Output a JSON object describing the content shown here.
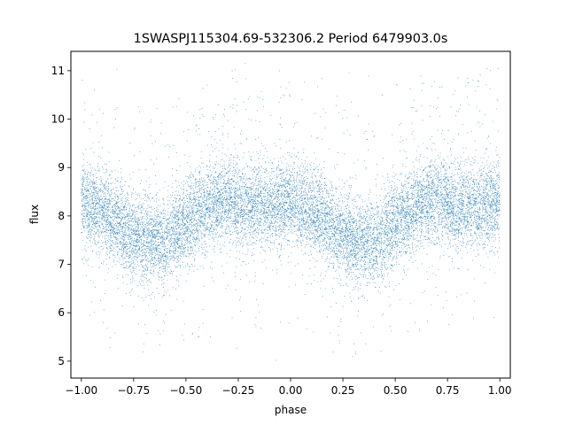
{
  "chart_data": {
    "type": "scatter",
    "title": "1SWASPJ115304.69-532306.2 Period 6479903.0s",
    "xlabel": "phase",
    "ylabel": "flux",
    "xlim": [
      -1.05,
      1.05
    ],
    "ylim": [
      4.65,
      11.4
    ],
    "xticks": [
      -1.0,
      -0.75,
      -0.5,
      -0.25,
      0.0,
      0.25,
      0.5,
      0.75,
      1.0
    ],
    "xtick_labels": [
      "−1.00",
      "−0.75",
      "−0.50",
      "−0.25",
      "0.00",
      "0.25",
      "0.50",
      "0.75",
      "1.00"
    ],
    "yticks": [
      5,
      6,
      7,
      8,
      9,
      10,
      11
    ],
    "ytick_labels": [
      "5",
      "6",
      "7",
      "8",
      "9",
      "10",
      "11"
    ],
    "grid": false,
    "marker_color": "#1f77b4",
    "profile_phase": [
      0.0,
      0.1,
      0.2,
      0.3,
      0.4,
      0.5,
      0.6,
      0.7,
      0.8,
      0.9,
      1.0
    ],
    "profile_median_flux": [
      8.3,
      8.1,
      7.75,
      7.5,
      7.45,
      7.85,
      8.2,
      8.35,
      8.15,
      8.2,
      8.3
    ],
    "scatter_sigma": 0.45,
    "points_per_unit_phase": 7000,
    "outlier_fraction": 0.04,
    "flux_range": [
      4.95,
      11.15
    ]
  }
}
